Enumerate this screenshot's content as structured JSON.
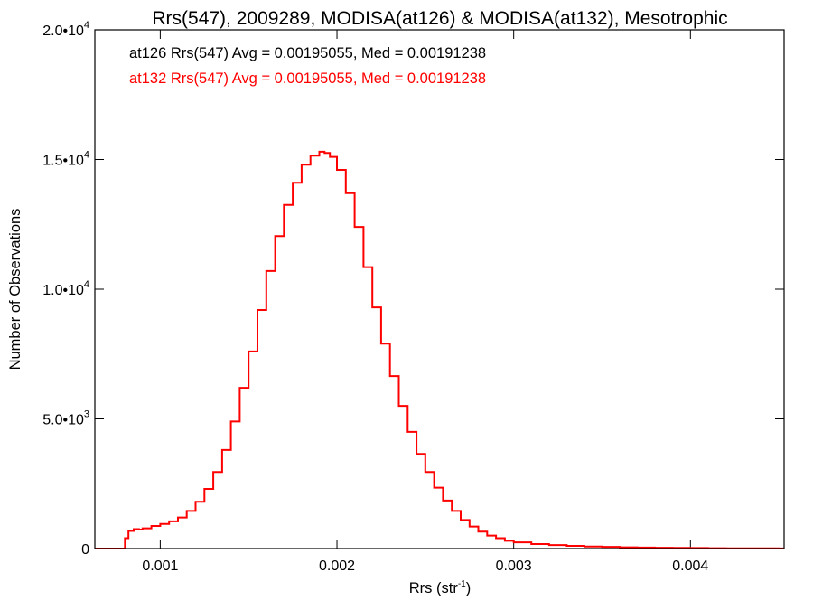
{
  "chart_data": {
    "type": "line",
    "title": "Rrs(547), 2009289, MODISA(at126) & MODISA(at132), Mesotrophic",
    "xlabel": "Rrs (str",
    "xlabel_sup": "-1",
    "xlabel_close": ")",
    "ylabel": "Number of Observations",
    "xlim": [
      0.00063,
      0.00453
    ],
    "ylim": [
      0,
      20000
    ],
    "x_ticks": [
      {
        "value": 0.001,
        "label": "0.001"
      },
      {
        "value": 0.002,
        "label": "0.002"
      },
      {
        "value": 0.003,
        "label": "0.003"
      },
      {
        "value": 0.004,
        "label": "0.004"
      }
    ],
    "y_ticks": [
      {
        "value": 0,
        "mant": "0",
        "exp": ""
      },
      {
        "value": 5000,
        "mant": "5.0•10",
        "exp": "3"
      },
      {
        "value": 10000,
        "mant": "1.0•10",
        "exp": "4"
      },
      {
        "value": 15000,
        "mant": "1.5•10",
        "exp": "4"
      },
      {
        "value": 20000,
        "mant": "2.0•10",
        "exp": "4"
      }
    ],
    "annotations": [
      {
        "text": "at126 Rrs(547) Avg = 0.00195055, Med = 0.00191238",
        "color": "#000000"
      },
      {
        "text": "at132 Rrs(547) Avg = 0.00195055, Med = 0.00191238",
        "color": "#ff0000"
      }
    ],
    "series": [
      {
        "color": "#ff0000",
        "x": [
          0.00063,
          0.0007,
          0.00078,
          0.0008,
          0.00082,
          0.00085,
          0.00088,
          0.0009,
          0.00095,
          0.001,
          0.00105,
          0.0011,
          0.00115,
          0.0012,
          0.00125,
          0.0013,
          0.00135,
          0.0014,
          0.00145,
          0.0015,
          0.00155,
          0.0016,
          0.00165,
          0.0017,
          0.00175,
          0.0018,
          0.00185,
          0.0019,
          0.00193,
          0.00196,
          0.002,
          0.00205,
          0.0021,
          0.00215,
          0.0022,
          0.00225,
          0.0023,
          0.00235,
          0.0024,
          0.00245,
          0.0025,
          0.00255,
          0.0026,
          0.00265,
          0.0027,
          0.00275,
          0.0028,
          0.00285,
          0.0029,
          0.00295,
          0.003,
          0.0031,
          0.0032,
          0.0033,
          0.0034,
          0.0035,
          0.0036,
          0.0037,
          0.0038,
          0.0039,
          0.004,
          0.0041,
          0.0042,
          0.0043,
          0.0044,
          0.0045
        ],
        "y": [
          0,
          0,
          0,
          400,
          680,
          750,
          730,
          780,
          870,
          950,
          1050,
          1200,
          1450,
          1800,
          2300,
          2950,
          3800,
          4900,
          6200,
          7600,
          9200,
          10700,
          12050,
          13250,
          14100,
          14800,
          15150,
          15300,
          15250,
          15100,
          14600,
          13700,
          12400,
          10850,
          9300,
          7900,
          6650,
          5500,
          4500,
          3650,
          2950,
          2350,
          1850,
          1450,
          1100,
          850,
          650,
          500,
          400,
          300,
          240,
          175,
          135,
          105,
          80,
          65,
          50,
          40,
          32,
          26,
          20,
          15,
          12,
          9,
          7,
          5
        ]
      }
    ]
  }
}
